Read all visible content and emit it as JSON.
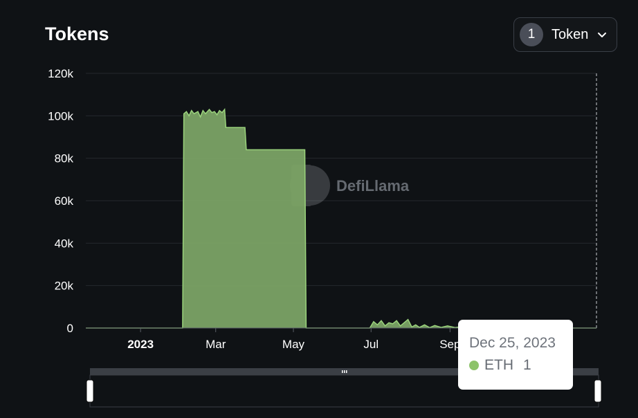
{
  "header": {
    "title": "Tokens",
    "token_count": "1",
    "token_button_label": "Token",
    "dropdown_icon": "chevron-down-icon"
  },
  "watermark": {
    "text": "DefiLlama",
    "icon": "llama-logo-icon"
  },
  "tooltip": {
    "date": "Dec 25, 2023",
    "series": "ETH",
    "value": "1"
  },
  "colors": {
    "background": "#0f1215",
    "series_fill": "#7ba365",
    "series_line": "#9bd47c",
    "grid": "#24282d",
    "tooltip_dot": "#8dc36a"
  },
  "slider": {
    "handle_icon": "drag-handle-icon"
  },
  "chart_data": {
    "type": "area",
    "title": "Tokens",
    "xlabel": "",
    "ylabel": "",
    "ylim": [
      0,
      120000
    ],
    "y_ticks": [
      0,
      20000,
      40000,
      60000,
      80000,
      100000,
      120000
    ],
    "y_tick_labels": [
      "0",
      "20k",
      "40k",
      "60k",
      "80k",
      "100k",
      "120k"
    ],
    "x_ticks": [
      {
        "date": "2023-01-01",
        "label": "2023",
        "bold": true
      },
      {
        "date": "2023-03-01",
        "label": "Mar",
        "bold": false
      },
      {
        "date": "2023-05-01",
        "label": "May",
        "bold": false
      },
      {
        "date": "2023-07-01",
        "label": "Jul",
        "bold": false
      },
      {
        "date": "2023-09-01",
        "label": "Sep",
        "bold": false
      }
    ],
    "xlim": [
      "2022-11-19",
      "2023-12-25"
    ],
    "grid": true,
    "legend": "none",
    "series": [
      {
        "name": "ETH",
        "points": [
          [
            "2022-11-19",
            0
          ],
          [
            "2023-02-03",
            0
          ],
          [
            "2023-02-04",
            101000
          ],
          [
            "2023-02-06",
            102000
          ],
          [
            "2023-02-08",
            100000
          ],
          [
            "2023-02-10",
            102500
          ],
          [
            "2023-02-12",
            101000
          ],
          [
            "2023-02-15",
            102000
          ],
          [
            "2023-02-17",
            99500
          ],
          [
            "2023-02-19",
            102500
          ],
          [
            "2023-02-21",
            101000
          ],
          [
            "2023-02-24",
            103000
          ],
          [
            "2023-02-26",
            101500
          ],
          [
            "2023-02-28",
            102000
          ],
          [
            "2023-03-02",
            100500
          ],
          [
            "2023-03-04",
            102500
          ],
          [
            "2023-03-06",
            101500
          ],
          [
            "2023-03-08",
            103000
          ],
          [
            "2023-03-09",
            94500
          ],
          [
            "2023-03-24",
            94500
          ],
          [
            "2023-03-25",
            84000
          ],
          [
            "2023-05-10",
            84000
          ],
          [
            "2023-05-11",
            0
          ],
          [
            "2023-06-30",
            0
          ],
          [
            "2023-07-03",
            3000
          ],
          [
            "2023-07-06",
            1500
          ],
          [
            "2023-07-09",
            3500
          ],
          [
            "2023-07-12",
            1000
          ],
          [
            "2023-07-15",
            2500
          ],
          [
            "2023-07-18",
            2000
          ],
          [
            "2023-07-21",
            3500
          ],
          [
            "2023-07-24",
            1000
          ],
          [
            "2023-07-27",
            2500
          ],
          [
            "2023-07-30",
            4000
          ],
          [
            "2023-08-02",
            500
          ],
          [
            "2023-08-05",
            1500
          ],
          [
            "2023-08-08",
            300
          ],
          [
            "2023-08-12",
            1500
          ],
          [
            "2023-08-16",
            200
          ],
          [
            "2023-08-20",
            1200
          ],
          [
            "2023-08-25",
            300
          ],
          [
            "2023-08-30",
            1000
          ],
          [
            "2023-09-05",
            200
          ],
          [
            "2023-09-12",
            800
          ],
          [
            "2023-09-18",
            200
          ],
          [
            "2023-09-25",
            0
          ],
          [
            "2023-12-25",
            1
          ]
        ]
      }
    ]
  }
}
